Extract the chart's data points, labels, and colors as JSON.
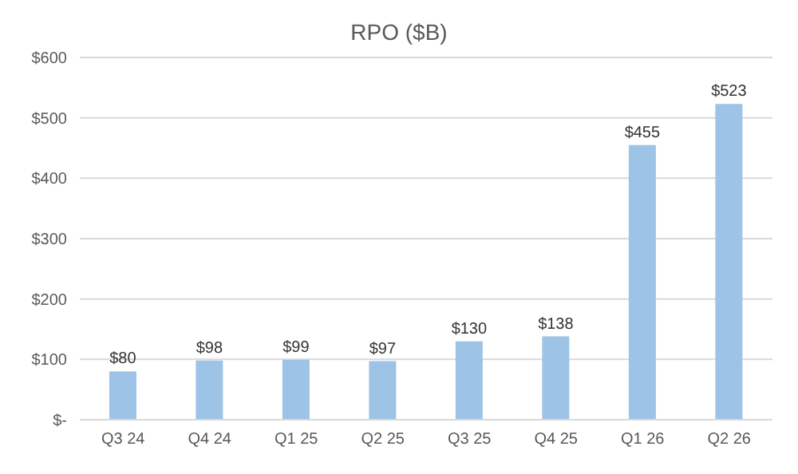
{
  "chart_data": {
    "type": "bar",
    "title": "RPO ($B)",
    "categories": [
      "Q3 24",
      "Q4 24",
      "Q1 25",
      "Q2 25",
      "Q3 25",
      "Q4 25",
      "Q1 26",
      "Q2 26"
    ],
    "values": [
      80,
      98,
      99,
      97,
      130,
      138,
      455,
      523
    ],
    "value_labels": [
      "$80",
      "$98",
      "$99",
      "$97",
      "$130",
      "$138",
      "$455",
      "$523"
    ],
    "color": "#9dc3e6",
    "ylim": [
      0,
      600
    ],
    "yticks": [
      {
        "value": 0,
        "label": "$-"
      },
      {
        "value": 100,
        "label": "$100"
      },
      {
        "value": 200,
        "label": "$200"
      },
      {
        "value": 300,
        "label": "$300"
      },
      {
        "value": 400,
        "label": "$400"
      },
      {
        "value": 500,
        "label": "$500"
      },
      {
        "value": 600,
        "label": "$600"
      }
    ],
    "grid": "y"
  }
}
